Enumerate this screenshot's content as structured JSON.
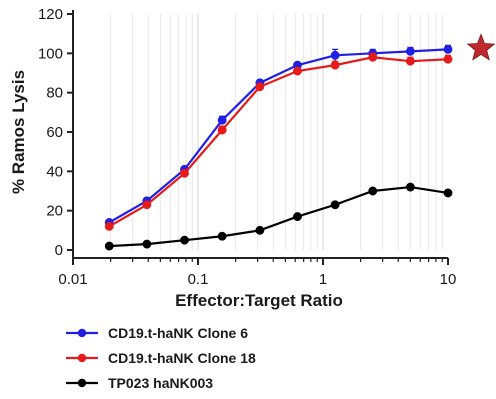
{
  "chart_data": {
    "type": "line",
    "title": "",
    "xlabel": "Effector:Target Ratio",
    "ylabel": "% Ramos Lysis",
    "xscale": "log",
    "xlim": [
      0.01,
      10
    ],
    "ylim": [
      0,
      120
    ],
    "xticks": [
      0.01,
      0.1,
      1,
      10
    ],
    "xtick_labels": [
      "0.01",
      "0.1",
      "1",
      "10"
    ],
    "yticks": [
      0,
      20,
      40,
      60,
      80,
      100,
      120
    ],
    "ytick_labels": [
      "0",
      "20",
      "40",
      "60",
      "80",
      "100",
      "120"
    ],
    "grid": "vertical minor log gridlines",
    "legend_position": "bottom-left, below axes",
    "x": [
      0.0195,
      0.039,
      0.078,
      0.156,
      0.3125,
      0.625,
      1.25,
      2.5,
      5,
      10
    ],
    "series": [
      {
        "name": "CD19.t-haNK Clone 6",
        "color": "#1f1fe6",
        "values": [
          14,
          25,
          41,
          66,
          85,
          94,
          99,
          100,
          101,
          102
        ],
        "error": [
          1,
          1.5,
          1.5,
          2,
          1.5,
          1,
          3,
          2,
          2,
          2
        ]
      },
      {
        "name": "CD19.t-haNK Clone 18",
        "color": "#e61a1a",
        "values": [
          12,
          23,
          39,
          61,
          83,
          91,
          94,
          98,
          96,
          97
        ],
        "error": [
          1,
          1,
          1.5,
          2,
          1.5,
          1,
          2,
          2,
          2,
          2
        ]
      },
      {
        "name": "TP023 haNK003",
        "color": "#000000",
        "values": [
          2,
          3,
          5,
          7,
          10,
          17,
          23,
          30,
          32,
          29
        ],
        "error": [
          0.5,
          0.5,
          0.5,
          0.5,
          0.5,
          0.8,
          0.8,
          1,
          1,
          1
        ]
      }
    ],
    "annotations": [
      {
        "type": "star-marker",
        "color": "#c0282d",
        "near": "right end of top series"
      }
    ]
  }
}
